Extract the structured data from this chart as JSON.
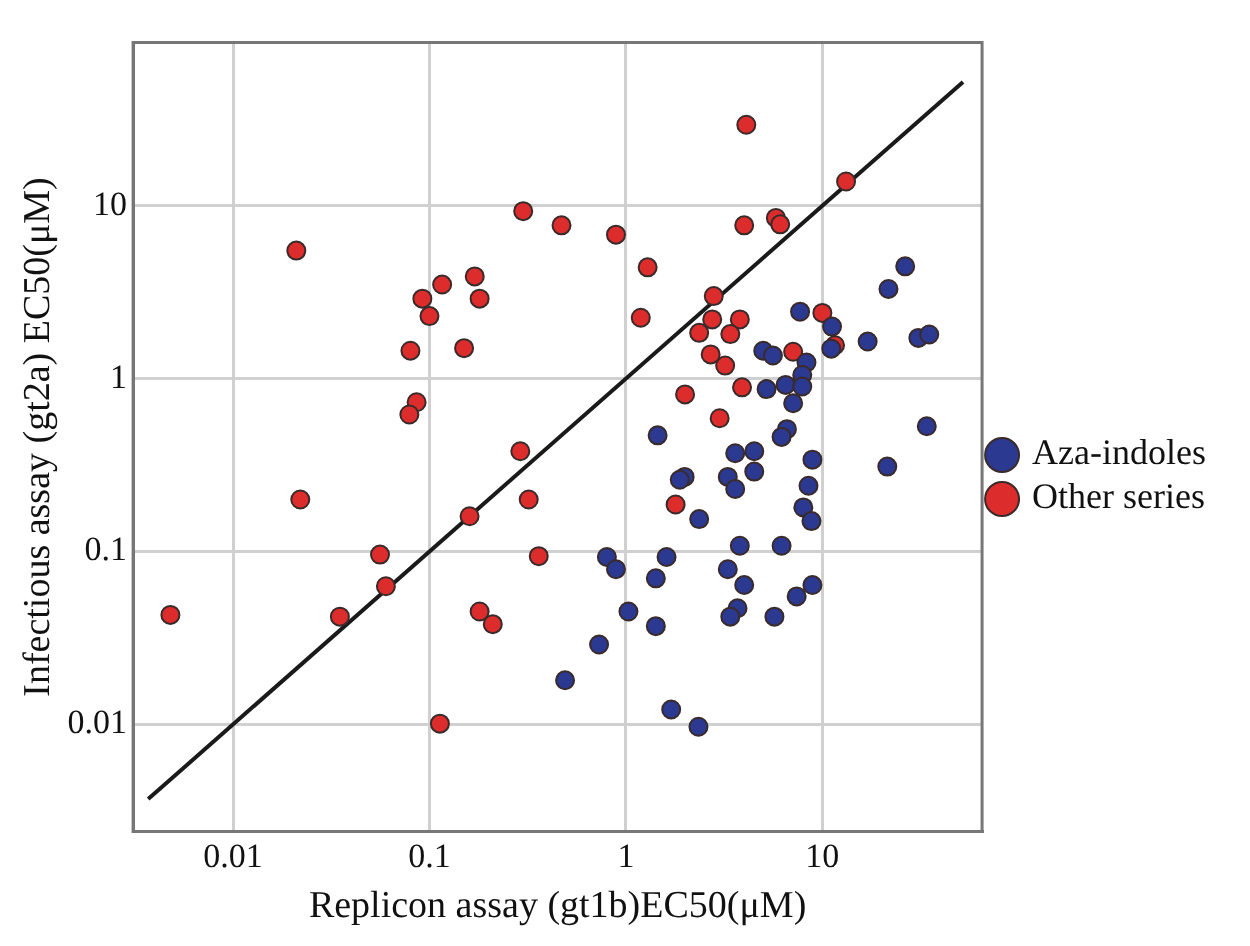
{
  "chart_data": {
    "type": "scatter",
    "xlabel": "Replicon assay (gt1b)EC50(μM)",
    "ylabel": "Infectious assay (gt2a) EC50(μM)",
    "log": "xy",
    "xlim": [
      0.0031,
      65
    ],
    "ylim": [
      0.0024,
      88
    ],
    "xticks": [
      0.01,
      0.1,
      1,
      10
    ],
    "yticks": [
      0.01,
      0.1,
      1,
      10
    ],
    "grid": true,
    "legend": "right",
    "series": [
      {
        "name": "Aza-indoles",
        "color": "#2b3990",
        "marker": "circle",
        "x": [
          26.4,
          21.7,
          7.7,
          11.2,
          17.0,
          30.8,
          35,
          11.1,
          5.0,
          5.6,
          8.3,
          7.9,
          6.5,
          7.9,
          5.2,
          7.1,
          34,
          1.45,
          6.6,
          6.2,
          21.4,
          3.6,
          4.5,
          8.9,
          1.99,
          1.88,
          3.3,
          4.5,
          3.6,
          8.5,
          8.0,
          8.8,
          2.36,
          3.8,
          6.2,
          0.8,
          1.61,
          0.89,
          3.3,
          1.42,
          4.0,
          8.9,
          7.4,
          1.03,
          3.7,
          3.4,
          5.7,
          1.42,
          0.73,
          0.49,
          1.7,
          2.34
        ],
        "values": [
          4.46,
          3.3,
          2.44,
          2.0,
          1.64,
          1.72,
          1.8,
          1.49,
          1.45,
          1.36,
          1.24,
          1.05,
          0.92,
          0.9,
          0.87,
          0.72,
          0.53,
          0.47,
          0.51,
          0.46,
          0.31,
          0.37,
          0.38,
          0.34,
          0.27,
          0.26,
          0.27,
          0.29,
          0.23,
          0.24,
          0.18,
          0.15,
          0.154,
          0.108,
          0.108,
          0.093,
          0.093,
          0.079,
          0.079,
          0.07,
          0.064,
          0.064,
          0.055,
          0.045,
          0.047,
          0.042,
          0.042,
          0.037,
          0.029,
          0.018,
          0.0122,
          0.0097
        ]
      },
      {
        "name": "Other series",
        "color": "#dd2c2c",
        "marker": "circle",
        "x": [
          0.021,
          0.3,
          0.47,
          0.89,
          0.116,
          0.17,
          0.092,
          0.18,
          0.1,
          0.08,
          0.15,
          0.086,
          0.079,
          0.29,
          4.1,
          13.2,
          4.0,
          5.8,
          6.1,
          1.29,
          2.8,
          1.19,
          2.75,
          3.8,
          10,
          2.36,
          3.4,
          2.7,
          3.2,
          7.1,
          11.6,
          2.0,
          3.9,
          3.0,
          1.79,
          0.022,
          0.32,
          0.16,
          0.056,
          0.36,
          0.06,
          0.0048,
          0.035,
          0.18,
          0.21,
          0.113
        ],
        "values": [
          5.5,
          9.3,
          7.7,
          6.8,
          3.5,
          3.9,
          2.9,
          2.9,
          2.3,
          1.45,
          1.5,
          0.73,
          0.62,
          0.38,
          29.4,
          13.8,
          7.7,
          8.5,
          7.8,
          4.4,
          3.0,
          2.25,
          2.2,
          2.2,
          2.4,
          1.84,
          1.81,
          1.38,
          1.19,
          1.43,
          1.56,
          0.81,
          0.89,
          0.59,
          0.187,
          0.2,
          0.2,
          0.16,
          0.096,
          0.094,
          0.063,
          0.043,
          0.042,
          0.045,
          0.038,
          0.0101
        ]
      },
      {
        "type": "line",
        "color": "#1a1a1a",
        "line_style": "solid",
        "marker": "none",
        "x": [
          0.0037,
          52
        ],
        "values": [
          0.0037,
          52
        ]
      }
    ]
  }
}
